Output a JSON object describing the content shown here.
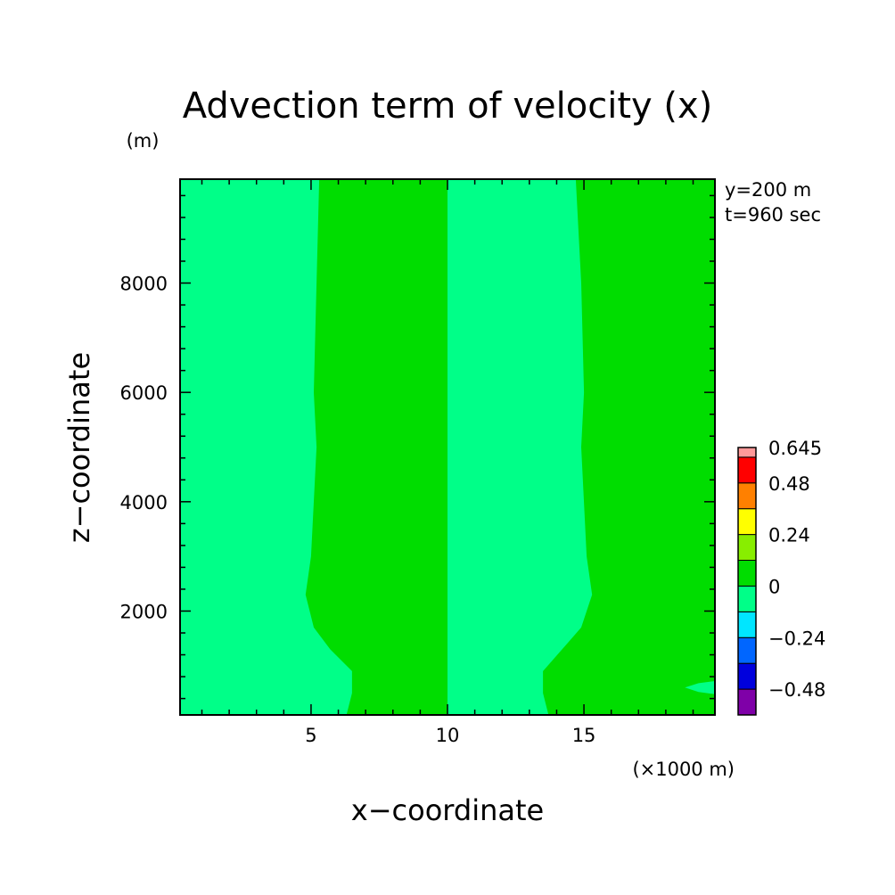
{
  "chart_data": {
    "type": "heatmap",
    "title": "Advection term of velocity (x)",
    "xlabel": "x−coordinate",
    "ylabel": "z−coordinate",
    "x_unit": "(×1000 m)",
    "y_unit": "(m)",
    "annotations": [
      "y=200 m",
      "t=960 sec"
    ],
    "xlim": [
      0.2,
      19.8
    ],
    "ylim": [
      100,
      9900
    ],
    "x_ticks": [
      5,
      10,
      15
    ],
    "x_tick_labels": [
      "5",
      "10",
      "15"
    ],
    "y_ticks": [
      2000,
      4000,
      6000,
      8000
    ],
    "y_tick_labels": [
      "2000",
      "4000",
      "6000",
      "8000"
    ],
    "grid": false,
    "colorbar": {
      "position": "right",
      "bounds": [
        -0.6,
        -0.48,
        -0.36,
        -0.24,
        -0.12,
        0,
        0.12,
        0.24,
        0.36,
        0.48,
        0.6,
        0.645
      ],
      "colors": [
        "#7f00a8",
        "#0000dd",
        "#0066ff",
        "#00e6ff",
        "#00ff88",
        "#00dd00",
        "#88ee00",
        "#ffff00",
        "#ff8000",
        "#ff0000",
        "#ff9999"
      ],
      "tick_labels": [
        {
          "value": 0.645,
          "label": "0.645"
        },
        {
          "value": 0.48,
          "label": "0.48"
        },
        {
          "value": 0.24,
          "label": "0.24"
        },
        {
          "value": 0,
          "label": "0"
        },
        {
          "value": -0.24,
          "label": "−0.24"
        },
        {
          "value": -0.48,
          "label": "−0.48"
        }
      ]
    },
    "background_color": "#00ff88",
    "regions": [
      {
        "name": "positive-region-left",
        "range": [
          0,
          0.12
        ],
        "color": "#00dd00",
        "polygon_xz": [
          [
            10,
            9900
          ],
          [
            5.3,
            9900
          ],
          [
            5.2,
            8000
          ],
          [
            5.1,
            6000
          ],
          [
            5.2,
            5000
          ],
          [
            5.0,
            3000
          ],
          [
            4.8,
            2300
          ],
          [
            5.1,
            1700
          ],
          [
            5.7,
            1300
          ],
          [
            6.5,
            900
          ],
          [
            6.5,
            500
          ],
          [
            6.3,
            100
          ],
          [
            10,
            100
          ]
        ]
      },
      {
        "name": "positive-region-right",
        "range": [
          0,
          0.12
        ],
        "color": "#00dd00",
        "polygon_xz": [
          [
            14.7,
            9900
          ],
          [
            19.8,
            9900
          ],
          [
            19.8,
            100
          ],
          [
            13.7,
            100
          ],
          [
            13.5,
            500
          ],
          [
            13.5,
            900
          ],
          [
            14.2,
            1300
          ],
          [
            14.9,
            1700
          ],
          [
            15.3,
            2300
          ],
          [
            15.1,
            3000
          ],
          [
            14.9,
            5000
          ],
          [
            15.0,
            6000
          ],
          [
            14.9,
            8000
          ]
        ]
      },
      {
        "name": "negative-lobe-left",
        "range": [
          -0.12,
          0
        ],
        "color": "#00ff88",
        "polygon_xz": [
          [
            0.2,
            480
          ],
          [
            0.8,
            520
          ],
          [
            1.3,
            600
          ],
          [
            0.8,
            680
          ],
          [
            0.2,
            720
          ]
        ]
      },
      {
        "name": "negative-lobe-right",
        "range": [
          -0.12,
          0
        ],
        "color": "#00ff88",
        "polygon_xz": [
          [
            19.8,
            480
          ],
          [
            19.2,
            520
          ],
          [
            18.7,
            600
          ],
          [
            19.2,
            680
          ],
          [
            19.8,
            720
          ]
        ]
      }
    ]
  }
}
